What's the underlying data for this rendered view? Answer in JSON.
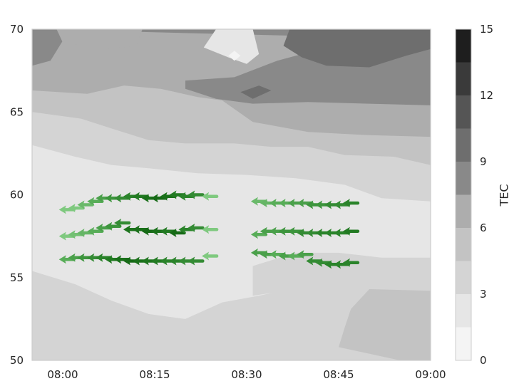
{
  "chart_data": {
    "type": "contour+quiver",
    "title": "",
    "xlabel": "",
    "ylabel": "",
    "x_tick_labels": [
      "08:00",
      "08:15",
      "08:30",
      "08:45",
      "09:00"
    ],
    "y_tick_labels": [
      "50",
      "55",
      "60",
      "65",
      "70"
    ],
    "xlim_minutes": [
      -5,
      60
    ],
    "ylim": [
      50,
      70
    ],
    "colorbar": {
      "label": "TEC",
      "tick_labels": [
        "0",
        "3",
        "6",
        "9",
        "12",
        "15"
      ],
      "levels": [
        0,
        1.5,
        3,
        4.5,
        6,
        7.5,
        9,
        10.5,
        12,
        13.5,
        15
      ],
      "colors": [
        "#f4f4f4",
        "#e6e6e6",
        "#d4d4d4",
        "#c3c3c3",
        "#adadad",
        "#898989",
        "#6e6e6e",
        "#555555",
        "#3a3a3a",
        "#1e1e1e"
      ]
    },
    "contour_regions": [
      {
        "level_index": 2,
        "points": [
          [
            -5,
            50
          ],
          [
            60,
            50
          ],
          [
            60,
            70
          ],
          [
            -5,
            70
          ]
        ]
      },
      {
        "level_index": 1,
        "points": [
          [
            -5,
            63
          ],
          [
            2,
            62.3
          ],
          [
            8,
            61.8
          ],
          [
            14,
            61.6
          ],
          [
            22,
            61.3
          ],
          [
            30,
            61.2
          ],
          [
            38,
            61
          ],
          [
            46,
            60.6
          ],
          [
            52,
            59.8
          ],
          [
            60,
            59.6
          ],
          [
            60,
            55
          ],
          [
            53,
            54.6
          ],
          [
            46,
            54.3
          ],
          [
            38,
            54.4
          ],
          [
            32,
            53.9
          ],
          [
            26,
            53.5
          ],
          [
            20,
            52.5
          ],
          [
            14,
            52.8
          ],
          [
            8,
            53.6
          ],
          [
            2,
            54.6
          ],
          [
            -5,
            55.4
          ]
        ]
      },
      {
        "level_index": 2,
        "points": [
          [
            31,
            53.9
          ],
          [
            31,
            55.7
          ],
          [
            38,
            56.5
          ],
          [
            45,
            56.5
          ],
          [
            52,
            56.2
          ],
          [
            60,
            56.2
          ],
          [
            60,
            54.6
          ],
          [
            52,
            54.4
          ],
          [
            45,
            54.2
          ],
          [
            38,
            54.3
          ]
        ]
      },
      {
        "level_index": 3,
        "points": [
          [
            -5,
            70
          ],
          [
            60,
            70
          ],
          [
            60,
            61.8
          ],
          [
            54,
            62.3
          ],
          [
            46,
            62.4
          ],
          [
            40,
            62.9
          ],
          [
            34,
            62.9
          ],
          [
            28,
            63.1
          ],
          [
            20,
            63.1
          ],
          [
            14,
            63.3
          ],
          [
            8,
            64
          ],
          [
            3,
            64.6
          ],
          [
            -5,
            65
          ]
        ]
      },
      {
        "level_index": 3,
        "points": [
          [
            55,
            50
          ],
          [
            60,
            50
          ],
          [
            60,
            54.2
          ],
          [
            50,
            54.3
          ],
          [
            47,
            53.1
          ],
          [
            46,
            52
          ],
          [
            45,
            50.8
          ]
        ]
      },
      {
        "level_index": 4,
        "points": [
          [
            -5,
            70
          ],
          [
            60,
            70
          ],
          [
            60,
            63.5
          ],
          [
            50,
            63.6
          ],
          [
            40,
            63.8
          ],
          [
            31,
            64.4
          ],
          [
            26,
            65.7
          ],
          [
            22,
            65.9
          ],
          [
            16,
            66.4
          ],
          [
            10,
            66.6
          ],
          [
            4,
            66.1
          ],
          [
            -5,
            66.3
          ]
        ]
      },
      {
        "level_index": 5,
        "points": [
          [
            -5,
            70
          ],
          [
            60,
            70
          ],
          [
            60,
            65.4
          ],
          [
            50,
            65.5
          ],
          [
            40,
            65.6
          ],
          [
            31,
            65.5
          ],
          [
            25,
            65.8
          ],
          [
            20,
            66.4
          ],
          [
            20,
            66.9
          ],
          [
            28,
            67.1
          ],
          [
            35,
            68.1
          ],
          [
            40,
            68.6
          ],
          [
            48,
            69.2
          ],
          [
            55,
            69.5
          ],
          [
            60,
            69.4
          ]
        ]
      },
      {
        "level_index": 5,
        "points": [
          [
            -5,
            70
          ],
          [
            -1,
            70
          ],
          [
            0,
            69.3
          ],
          [
            -2,
            68.1
          ],
          [
            -5,
            67.8
          ]
        ]
      },
      {
        "level_index": 6,
        "points": [
          [
            29,
            66.2
          ],
          [
            32,
            66.6
          ],
          [
            34,
            66.3
          ],
          [
            31,
            65.8
          ]
        ]
      },
      {
        "level_index": 6,
        "points": [
          [
            37,
            70
          ],
          [
            60,
            70
          ],
          [
            60,
            68.8
          ],
          [
            56,
            68.4
          ],
          [
            50,
            67.7
          ],
          [
            43,
            67.8
          ],
          [
            39,
            68.3
          ],
          [
            36,
            69
          ]
        ]
      },
      {
        "level_index": 4,
        "points": [
          [
            -1,
            70
          ],
          [
            13,
            70
          ],
          [
            12,
            69
          ],
          [
            7,
            68.8
          ],
          [
            0,
            69.2
          ]
        ]
      },
      {
        "level_index": 1,
        "points": [
          [
            25,
            70
          ],
          [
            31,
            70
          ],
          [
            32,
            68.5
          ],
          [
            30,
            67.9
          ],
          [
            27,
            68.3
          ],
          [
            23,
            68.9
          ]
        ]
      },
      {
        "level_index": 0,
        "points": [
          [
            28,
            68.7
          ],
          [
            29,
            68.4
          ],
          [
            28,
            68.1
          ],
          [
            27,
            68.4
          ]
        ]
      }
    ],
    "quiver_points": [
      {
        "x": 0.2,
        "y": 59.1,
        "shade": "#7fc97f"
      },
      {
        "x": 1.7,
        "y": 59.2,
        "shade": "#7fc97f"
      },
      {
        "x": 3.2,
        "y": 59.4,
        "shade": "#6ab96a"
      },
      {
        "x": 4.8,
        "y": 59.6,
        "shade": "#58ad58"
      },
      {
        "x": 6.2,
        "y": 59.8,
        "shade": "#4aa04a"
      },
      {
        "x": 7.7,
        "y": 59.8,
        "shade": "#3d953d"
      },
      {
        "x": 9.2,
        "y": 59.8,
        "shade": "#348b34"
      },
      {
        "x": 10.7,
        "y": 59.9,
        "shade": "#2a832a"
      },
      {
        "x": 12.2,
        "y": 59.9,
        "shade": "#227a22"
      },
      {
        "x": 13.7,
        "y": 59.8,
        "shade": "#1a701a"
      },
      {
        "x": 15.2,
        "y": 59.8,
        "shade": "#166a16"
      },
      {
        "x": 16.7,
        "y": 59.9,
        "shade": "#197119"
      },
      {
        "x": 18.2,
        "y": 60.0,
        "shade": "#227a22"
      },
      {
        "x": 19.7,
        "y": 59.9,
        "shade": "#2a832a"
      },
      {
        "x": 21.2,
        "y": 60.0,
        "shade": "#348b34"
      },
      {
        "x": 23.5,
        "y": 59.9,
        "shade": "#7fc97f"
      },
      {
        "x": 0.2,
        "y": 57.5,
        "shade": "#7fc97f"
      },
      {
        "x": 1.7,
        "y": 57.6,
        "shade": "#73c073"
      },
      {
        "x": 3.2,
        "y": 57.7,
        "shade": "#66b566"
      },
      {
        "x": 4.8,
        "y": 57.8,
        "shade": "#58ad58"
      },
      {
        "x": 6.2,
        "y": 58.0,
        "shade": "#4aa04a"
      },
      {
        "x": 7.7,
        "y": 58.1,
        "shade": "#3d953d"
      },
      {
        "x": 9.2,
        "y": 58.3,
        "shade": "#348b34"
      },
      {
        "x": 10.7,
        "y": 57.9,
        "shade": "#1d741d"
      },
      {
        "x": 12.2,
        "y": 57.9,
        "shade": "#1a701a"
      },
      {
        "x": 13.7,
        "y": 57.8,
        "shade": "#166a16"
      },
      {
        "x": 15.2,
        "y": 57.8,
        "shade": "#1a701a"
      },
      {
        "x": 16.7,
        "y": 57.8,
        "shade": "#227a22"
      },
      {
        "x": 18.2,
        "y": 57.7,
        "shade": "#166a16"
      },
      {
        "x": 19.7,
        "y": 57.9,
        "shade": "#2a832a"
      },
      {
        "x": 21.2,
        "y": 58.0,
        "shade": "#348b34"
      },
      {
        "x": 23.5,
        "y": 57.9,
        "shade": "#7fc97f"
      },
      {
        "x": 0.2,
        "y": 56.1,
        "shade": "#58ad58"
      },
      {
        "x": 1.7,
        "y": 56.2,
        "shade": "#4aa04a"
      },
      {
        "x": 3.2,
        "y": 56.2,
        "shade": "#3d953d"
      },
      {
        "x": 4.8,
        "y": 56.2,
        "shade": "#348b34"
      },
      {
        "x": 6.2,
        "y": 56.2,
        "shade": "#2a832a"
      },
      {
        "x": 7.7,
        "y": 56.1,
        "shade": "#227a22"
      },
      {
        "x": 9.2,
        "y": 56.1,
        "shade": "#1a701a"
      },
      {
        "x": 10.7,
        "y": 56.0,
        "shade": "#166a16"
      },
      {
        "x": 12.2,
        "y": 56.0,
        "shade": "#1a701a"
      },
      {
        "x": 13.7,
        "y": 56.0,
        "shade": "#1d741d"
      },
      {
        "x": 15.2,
        "y": 56.0,
        "shade": "#227a22"
      },
      {
        "x": 16.7,
        "y": 56.0,
        "shade": "#2a832a"
      },
      {
        "x": 18.2,
        "y": 56.0,
        "shade": "#2a832a"
      },
      {
        "x": 19.7,
        "y": 56.0,
        "shade": "#348b34"
      },
      {
        "x": 21.2,
        "y": 56.0,
        "shade": "#348b34"
      },
      {
        "x": 23.5,
        "y": 56.3,
        "shade": "#7fc97f"
      },
      {
        "x": 31.5,
        "y": 59.6,
        "shade": "#6ab96a"
      },
      {
        "x": 33.0,
        "y": 59.5,
        "shade": "#66b566"
      },
      {
        "x": 34.5,
        "y": 59.5,
        "shade": "#58ad58"
      },
      {
        "x": 36.0,
        "y": 59.5,
        "shade": "#58ad58"
      },
      {
        "x": 37.5,
        "y": 59.5,
        "shade": "#4aa04a"
      },
      {
        "x": 39.0,
        "y": 59.5,
        "shade": "#4aa04a"
      },
      {
        "x": 40.5,
        "y": 59.4,
        "shade": "#3d953d"
      },
      {
        "x": 42.0,
        "y": 59.4,
        "shade": "#3d953d"
      },
      {
        "x": 43.5,
        "y": 59.4,
        "shade": "#348b34"
      },
      {
        "x": 45.0,
        "y": 59.4,
        "shade": "#348b34"
      },
      {
        "x": 46.5,
        "y": 59.5,
        "shade": "#2a832a"
      },
      {
        "x": 31.5,
        "y": 57.6,
        "shade": "#58ad58"
      },
      {
        "x": 33.0,
        "y": 57.8,
        "shade": "#4aa04a"
      },
      {
        "x": 34.5,
        "y": 57.8,
        "shade": "#4aa04a"
      },
      {
        "x": 36.0,
        "y": 57.8,
        "shade": "#3d953d"
      },
      {
        "x": 37.5,
        "y": 57.8,
        "shade": "#3d953d"
      },
      {
        "x": 39.0,
        "y": 57.7,
        "shade": "#348b34"
      },
      {
        "x": 40.5,
        "y": 57.7,
        "shade": "#348b34"
      },
      {
        "x": 42.0,
        "y": 57.7,
        "shade": "#2a832a"
      },
      {
        "x": 43.5,
        "y": 57.7,
        "shade": "#2a832a"
      },
      {
        "x": 45.0,
        "y": 57.7,
        "shade": "#2a832a"
      },
      {
        "x": 46.5,
        "y": 57.8,
        "shade": "#227a22"
      },
      {
        "x": 31.5,
        "y": 56.5,
        "shade": "#4aa04a"
      },
      {
        "x": 33.0,
        "y": 56.4,
        "shade": "#4aa04a"
      },
      {
        "x": 34.5,
        "y": 56.4,
        "shade": "#58ad58"
      },
      {
        "x": 36.0,
        "y": 56.3,
        "shade": "#4aa04a"
      },
      {
        "x": 37.5,
        "y": 56.3,
        "shade": "#58ad58"
      },
      {
        "x": 39.0,
        "y": 56.4,
        "shade": "#4aa04a"
      },
      {
        "x": 40.5,
        "y": 56.0,
        "shade": "#348b34"
      },
      {
        "x": 42.0,
        "y": 55.9,
        "shade": "#348b34"
      },
      {
        "x": 43.5,
        "y": 55.8,
        "shade": "#2a832a"
      },
      {
        "x": 45.0,
        "y": 55.8,
        "shade": "#2a832a"
      },
      {
        "x": 46.5,
        "y": 55.9,
        "shade": "#2a832a"
      }
    ],
    "grid": false,
    "legend": "colorbar-right"
  }
}
